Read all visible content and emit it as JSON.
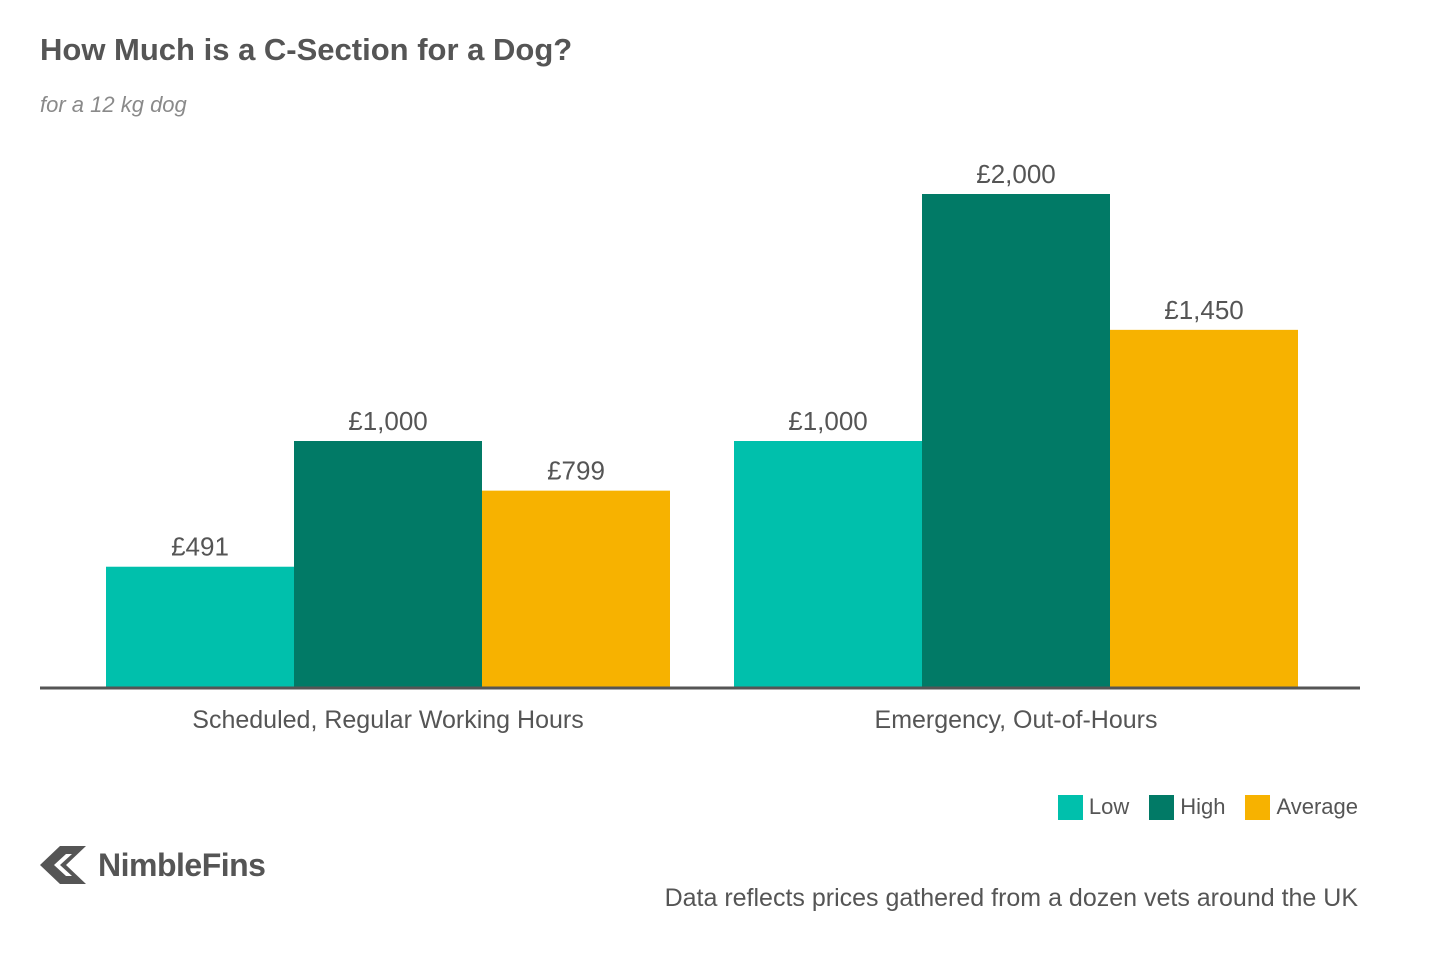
{
  "title": "How Much is a C-Section for a Dog?",
  "subtitle": "for a 12 kg dog",
  "brand": {
    "name": "NimbleFins"
  },
  "footnote": "Data reflects prices gathered from a dozen vets around the UK",
  "colors": {
    "low": "#00c0ac",
    "high": "#017a66",
    "average": "#f7b200",
    "axis": "#555555",
    "text": "#555555"
  },
  "legend": [
    {
      "label": "Low",
      "color": "#00c0ac"
    },
    {
      "label": "High",
      "color": "#017a66"
    },
    {
      "label": "Average",
      "color": "#f7b200"
    }
  ],
  "chart_data": {
    "type": "bar",
    "categories": [
      "Scheduled, Regular Working Hours",
      "Emergency, Out-of-Hours"
    ],
    "series": [
      {
        "name": "Low",
        "values": [
          491,
          1000
        ],
        "labels": [
          "£491",
          "£1,000"
        ],
        "color": "#00c0ac"
      },
      {
        "name": "High",
        "values": [
          1000,
          2000
        ],
        "labels": [
          "£1,000",
          "£2,000"
        ],
        "color": "#017a66"
      },
      {
        "name": "Average",
        "values": [
          799,
          1450
        ],
        "labels": [
          "£799",
          "£1,450"
        ],
        "color": "#f7b200"
      }
    ],
    "ylim": [
      0,
      2000
    ],
    "grid": false,
    "legend_position": "bottom-right"
  }
}
